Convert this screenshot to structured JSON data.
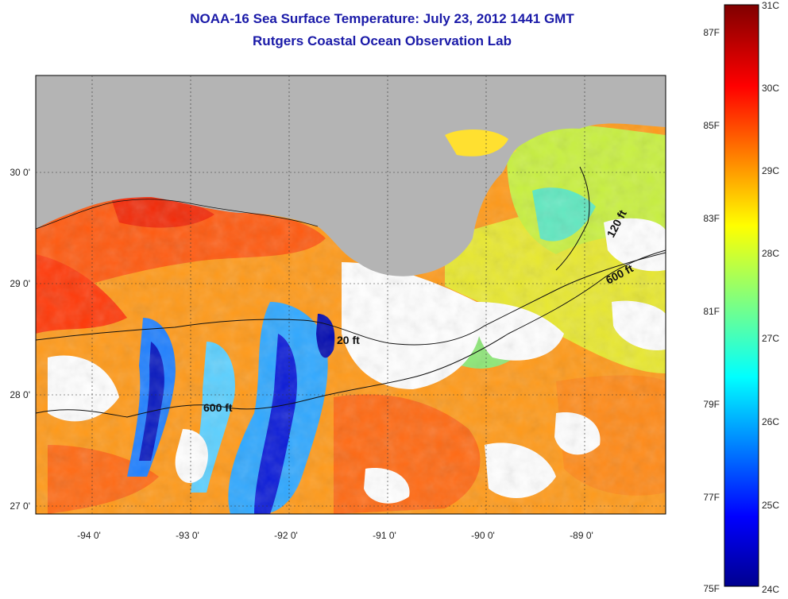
{
  "header": {
    "title": "NOAA-16 Sea Surface Temperature:  July 23, 2012 1441 GMT",
    "subtitle": "Rutgers Coastal Ocean Observation Lab"
  },
  "map": {
    "lon_ticks": [
      "-94 0'",
      "-93 0'",
      "-92 0'",
      "-91 0'",
      "-90 0'",
      "-89 0'"
    ],
    "lat_ticks": [
      "30 0'",
      "29 0'",
      "28 0'",
      "27 0'"
    ],
    "contours": [
      "120 ft",
      "600 ft",
      "20 ft",
      "600 ft"
    ],
    "colors": {
      "land": "#b4b4b4",
      "cloud": "#ffffff"
    }
  },
  "colorbar": {
    "fahrenheit": [
      "87F",
      "85F",
      "83F",
      "81F",
      "79F",
      "77F",
      "75F"
    ],
    "celsius": [
      "31C",
      "30C",
      "29C",
      "28C",
      "27C",
      "26C",
      "25C",
      "24C"
    ]
  }
}
